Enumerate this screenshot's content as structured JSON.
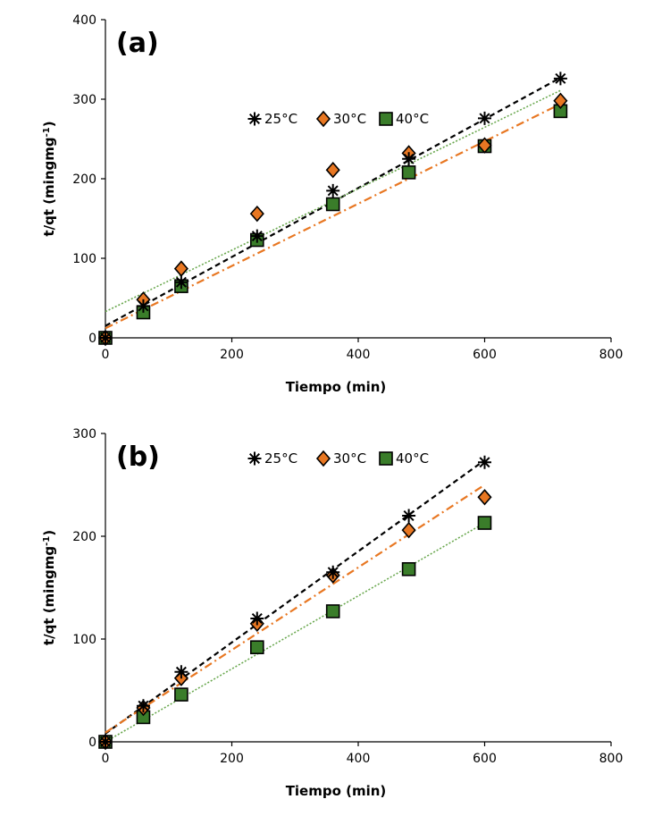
{
  "chart_data": [
    {
      "type": "scatter",
      "panel_label": "(a)",
      "xlabel": "Tiempo (min)",
      "ylabel": "t/qt (mingmg",
      "ylabel_sup": "-1",
      "ylabel_tail": ")",
      "xlim": [
        0,
        800
      ],
      "ylim": [
        0,
        400
      ],
      "xticks": [
        "0",
        "200",
        "400",
        "600",
        "800"
      ],
      "yticks": [
        "0",
        "100",
        "200",
        "300",
        "400"
      ],
      "legend_position": "top-center",
      "series": [
        {
          "name": "25°C",
          "marker": "asterisk",
          "color": "#000000",
          "line_color": "#000000",
          "line_style": "dashed",
          "x": [
            0,
            60,
            120,
            240,
            360,
            480,
            600,
            720
          ],
          "y": [
            0,
            40,
            70,
            128,
            185,
            225,
            276,
            326
          ],
          "fit": [
            [
              0,
              15
            ],
            [
              720,
              327
            ]
          ]
        },
        {
          "name": "30°C",
          "marker": "diamond",
          "color": "#e87722",
          "line_color": "#e87722",
          "line_style": "dashdot",
          "x": [
            0,
            60,
            120,
            240,
            360,
            480,
            600,
            720
          ],
          "y": [
            0,
            48,
            87,
            156,
            211,
            232,
            242,
            298
          ],
          "fit": [
            [
              0,
              12
            ],
            [
              720,
              294
            ]
          ]
        },
        {
          "name": "40°C",
          "marker": "square",
          "color": "#3a7d2a",
          "line_color": "#6aa84f",
          "line_style": "dotted",
          "x": [
            0,
            60,
            120,
            240,
            360,
            480,
            600,
            720
          ],
          "y": [
            0,
            32,
            65,
            123,
            168,
            208,
            241,
            285
          ],
          "fit": [
            [
              0,
              33
            ],
            [
              720,
              311
            ]
          ]
        }
      ]
    },
    {
      "type": "scatter",
      "panel_label": "(b)",
      "xlabel": "Tiempo (min)",
      "ylabel": "t/qt (mingmg",
      "ylabel_sup": "-1",
      "ylabel_tail": ")",
      "xlim": [
        0,
        800
      ],
      "ylim": [
        0,
        300
      ],
      "xticks": [
        "0",
        "200",
        "400",
        "600",
        "800"
      ],
      "yticks": [
        "0",
        "100",
        "200",
        "300"
      ],
      "legend_position": "top-center",
      "series": [
        {
          "name": "25°C",
          "marker": "asterisk",
          "color": "#000000",
          "line_color": "#000000",
          "line_style": "dashed",
          "x": [
            0,
            60,
            120,
            240,
            360,
            480,
            600
          ],
          "y": [
            0,
            35,
            68,
            120,
            165,
            220,
            272
          ],
          "fit": [
            [
              0,
              8
            ],
            [
              600,
              274
            ]
          ]
        },
        {
          "name": "30°C",
          "marker": "diamond",
          "color": "#e87722",
          "line_color": "#e87722",
          "line_style": "dashdot",
          "x": [
            0,
            60,
            120,
            240,
            360,
            480,
            600
          ],
          "y": [
            0,
            33,
            62,
            115,
            162,
            206,
            238
          ],
          "fit": [
            [
              0,
              9
            ],
            [
              600,
              250
            ]
          ]
        },
        {
          "name": "40°C",
          "marker": "square",
          "color": "#3a7d2a",
          "line_color": "#6aa84f",
          "line_style": "dotted",
          "x": [
            0,
            60,
            120,
            240,
            360,
            480,
            600
          ],
          "y": [
            0,
            24,
            46,
            92,
            127,
            168,
            213
          ],
          "fit": [
            [
              0,
              0
            ],
            [
              600,
              213
            ]
          ]
        }
      ]
    }
  ]
}
